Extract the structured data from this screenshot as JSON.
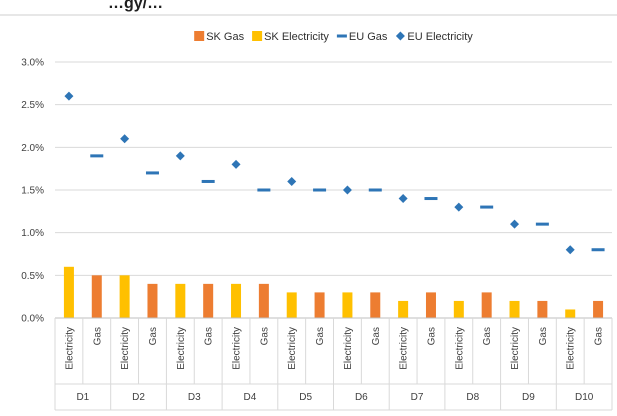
{
  "chart_data": {
    "type": "bar",
    "title": "…gy/…",
    "categories": [
      "D1",
      "D2",
      "D3",
      "D4",
      "D5",
      "D6",
      "D7",
      "D8",
      "D9",
      "D10"
    ],
    "subcategories": [
      "Electricity",
      "Gas"
    ],
    "ylim": [
      0,
      3.0
    ],
    "yticks": [
      "0.0%",
      "0.5%",
      "1.0%",
      "1.5%",
      "2.0%",
      "2.5%",
      "3.0%"
    ],
    "grid": true,
    "legend_position": "top",
    "series": [
      {
        "name": "SK Gas",
        "kind": "bar",
        "subcategory": "Gas",
        "color": "#ED7D31",
        "values": [
          0.5,
          0.4,
          0.4,
          0.4,
          0.3,
          0.3,
          0.3,
          0.3,
          0.2,
          0.2
        ]
      },
      {
        "name": "SK Electricity",
        "kind": "bar",
        "subcategory": "Electricity",
        "color": "#FFC000",
        "values": [
          0.6,
          0.5,
          0.4,
          0.4,
          0.3,
          0.3,
          0.2,
          0.2,
          0.2,
          0.1
        ]
      },
      {
        "name": "EU Gas",
        "kind": "dash",
        "subcategory": "Gas",
        "color": "#2E75B6",
        "values": [
          1.9,
          1.7,
          1.6,
          1.5,
          1.5,
          1.5,
          1.4,
          1.3,
          1.1,
          0.8
        ]
      },
      {
        "name": "EU Electricity",
        "kind": "diamond",
        "subcategory": "Electricity",
        "color": "#2E75B6",
        "values": [
          2.6,
          2.1,
          1.9,
          1.8,
          1.6,
          1.5,
          1.4,
          1.3,
          1.1,
          0.8
        ]
      }
    ]
  }
}
